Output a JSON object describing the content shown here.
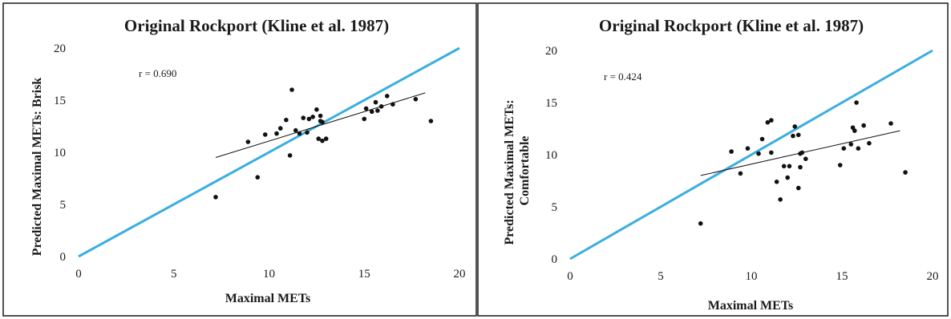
{
  "chart_data": [
    {
      "type": "scatter",
      "title": "Original Rockport (Kline et al. 1987)",
      "xlabel": "Maximal METs",
      "ylabel": [
        "Predicted Maximal METs: Brisk"
      ],
      "xlim": [
        0,
        20
      ],
      "ylim": [
        0,
        20
      ],
      "xticks": [
        "0",
        "5",
        "10",
        "15",
        "20"
      ],
      "yticks": [
        "0",
        "5",
        "10",
        "15",
        "20"
      ],
      "annotation": "r = 0.690",
      "grid": false,
      "colors": {
        "identity": "#3aaee0",
        "points": "#111111",
        "trend": "#111111"
      },
      "identity_line": [
        [
          0,
          0
        ],
        [
          20,
          20
        ]
      ],
      "trend_line": [
        [
          7.2,
          9.5
        ],
        [
          18.2,
          15.7
        ]
      ],
      "points": [
        [
          7.2,
          5.7
        ],
        [
          8.9,
          11.0
        ],
        [
          9.4,
          7.6
        ],
        [
          9.8,
          11.7
        ],
        [
          10.4,
          11.8
        ],
        [
          10.6,
          12.3
        ],
        [
          10.9,
          13.1
        ],
        [
          11.1,
          9.7
        ],
        [
          11.2,
          16.0
        ],
        [
          11.4,
          12.1
        ],
        [
          11.6,
          11.8
        ],
        [
          11.8,
          13.3
        ],
        [
          12.0,
          11.9
        ],
        [
          12.1,
          13.2
        ],
        [
          12.3,
          13.4
        ],
        [
          12.5,
          14.1
        ],
        [
          12.6,
          11.3
        ],
        [
          12.7,
          13.5
        ],
        [
          12.7,
          13.0
        ],
        [
          12.8,
          12.9
        ],
        [
          12.8,
          11.1
        ],
        [
          13.0,
          11.3
        ],
        [
          15.0,
          13.2
        ],
        [
          15.1,
          14.2
        ],
        [
          15.4,
          13.9
        ],
        [
          15.6,
          14.8
        ],
        [
          15.7,
          14.0
        ],
        [
          15.9,
          14.4
        ],
        [
          16.2,
          15.4
        ],
        [
          16.5,
          14.6
        ],
        [
          17.7,
          15.1
        ],
        [
          18.5,
          13.0
        ]
      ]
    },
    {
      "type": "scatter",
      "title": "Original Rockport (Kline et al. 1987)",
      "xlabel": "Maximal METs",
      "ylabel": [
        "Predicted Maximal METs:",
        "Comfortable"
      ],
      "xlim": [
        0,
        20
      ],
      "ylim": [
        0,
        20
      ],
      "xticks": [
        "0",
        "5",
        "10",
        "15",
        "20"
      ],
      "yticks": [
        "0",
        "5",
        "10",
        "15",
        "20"
      ],
      "annotation": "r = 0.424",
      "grid": false,
      "colors": {
        "identity": "#3aaee0",
        "points": "#111111",
        "trend": "#111111"
      },
      "identity_line": [
        [
          0,
          0
        ],
        [
          20,
          20
        ]
      ],
      "trend_line": [
        [
          7.2,
          8.0
        ],
        [
          18.2,
          12.3
        ]
      ],
      "points": [
        [
          7.2,
          3.4
        ],
        [
          8.9,
          10.3
        ],
        [
          9.4,
          8.2
        ],
        [
          9.8,
          10.6
        ],
        [
          10.4,
          10.1
        ],
        [
          10.6,
          11.5
        ],
        [
          10.9,
          13.1
        ],
        [
          11.1,
          13.3
        ],
        [
          11.1,
          10.2
        ],
        [
          11.4,
          7.4
        ],
        [
          11.6,
          5.7
        ],
        [
          11.8,
          8.9
        ],
        [
          12.0,
          7.8
        ],
        [
          12.1,
          8.9
        ],
        [
          12.3,
          11.8
        ],
        [
          12.4,
          12.7
        ],
        [
          12.6,
          11.9
        ],
        [
          12.6,
          6.8
        ],
        [
          12.7,
          10.1
        ],
        [
          12.7,
          8.8
        ],
        [
          12.8,
          10.2
        ],
        [
          13.0,
          9.6
        ],
        [
          14.9,
          9.0
        ],
        [
          15.1,
          10.6
        ],
        [
          15.5,
          11.0
        ],
        [
          15.6,
          12.6
        ],
        [
          15.7,
          12.3
        ],
        [
          15.8,
          15.0
        ],
        [
          15.9,
          10.6
        ],
        [
          16.2,
          12.8
        ],
        [
          16.5,
          11.1
        ],
        [
          17.7,
          13.0
        ],
        [
          18.5,
          8.3
        ]
      ]
    }
  ]
}
